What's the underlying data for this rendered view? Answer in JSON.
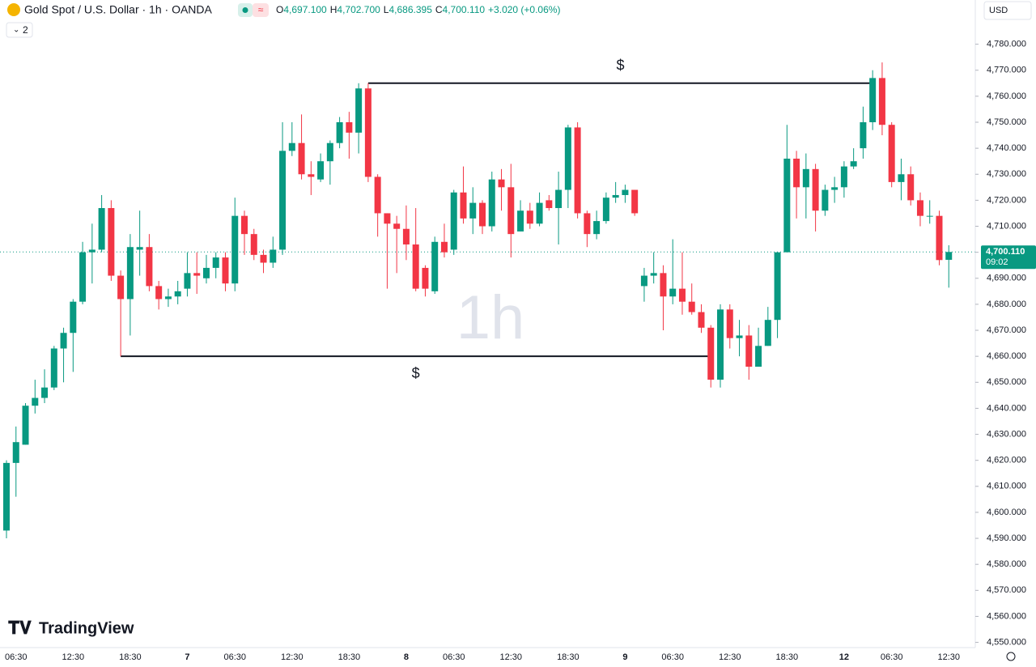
{
  "chart_data": {
    "type": "candlestick",
    "title": "Gold Spot / U.S. Dollar · 1h · OANDA",
    "legend": [
      {
        "prefix": "O",
        "value": "4,697.100"
      },
      {
        "prefix": "H",
        "value": "4,702.700"
      },
      {
        "prefix": "L",
        "value": "4,686.395"
      },
      {
        "prefix": "C",
        "value": "4,700.110"
      }
    ],
    "change": "+3.020 (+0.06%)",
    "indicators_count": "2",
    "currency": "USD",
    "watermark": "1h",
    "brand": "TradingView",
    "up_color": "#089981",
    "down_color": "#f23645",
    "grid": false,
    "current_price": {
      "value": 4700.11,
      "label": "4,700.110"
    },
    "countdown": "09:02",
    "annotations": [
      {
        "label": "$",
        "value": 4765,
        "x_range": [
          38,
          91
        ]
      },
      {
        "label": "$",
        "value": 4660,
        "x_range": [
          12,
          74
        ]
      }
    ],
    "categories": [
      null,
      "06:30",
      null,
      null,
      null,
      null,
      null,
      "12:30",
      null,
      null,
      null,
      null,
      null,
      "18:30",
      null,
      null,
      null,
      null,
      null,
      "7",
      null,
      null,
      null,
      null,
      "06:30",
      null,
      null,
      null,
      null,
      null,
      "12:30",
      null,
      null,
      null,
      null,
      null,
      "18:30",
      null,
      null,
      null,
      null,
      null,
      "8",
      null,
      null,
      null,
      null,
      "06:30",
      null,
      null,
      null,
      null,
      null,
      "12:30",
      null,
      null,
      null,
      null,
      null,
      "18:30",
      null,
      null,
      null,
      null,
      null,
      "9",
      null,
      null,
      null,
      null,
      "06:30",
      null,
      null,
      null,
      null,
      null,
      "12:30",
      null,
      null,
      null,
      null,
      null,
      "18:30",
      null,
      null,
      null,
      null,
      null,
      "12",
      null,
      null,
      null,
      null,
      "06:30",
      null,
      null,
      null,
      null,
      null,
      "12:30"
    ],
    "open": [
      4593,
      4619,
      4626,
      4641,
      4644,
      4648,
      4663,
      4669,
      4681,
      4700,
      4701,
      4717,
      4691,
      4682,
      4701,
      4702,
      4687,
      4682,
      4683,
      4686,
      4692,
      4690,
      4694,
      4698,
      4688,
      4714,
      4707,
      4699,
      4696,
      4701,
      4739,
      4742,
      4730,
      4728,
      4735,
      4742,
      4750,
      4746,
      4763,
      4729,
      4715,
      4711,
      4709,
      4703,
      4694,
      4685,
      4704,
      4701,
      4723,
      4713,
      4719,
      4710,
      4728,
      4725,
      4708,
      4716,
      4711,
      4720,
      4717,
      4724,
      4748,
      4715,
      4707,
      4712,
      4721,
      4722,
      4724,
      4687,
      4691,
      4692,
      4683,
      4686,
      4681,
      4677,
      4671,
      4651,
      4678,
      4667,
      4668,
      4656,
      4664,
      4674,
      4700,
      4736,
      4725,
      4732,
      4716,
      4724,
      4725,
      4733,
      4740,
      4750,
      4767,
      4749,
      4727,
      4730,
      4720,
      4714,
      4714,
      4697.1
    ],
    "high": [
      4620,
      4633,
      4642,
      4651,
      4655,
      4664,
      4671,
      4682,
      4704,
      4711,
      4722,
      4720,
      4693,
      4707,
      4716,
      4707,
      4689,
      4686,
      4689,
      4700,
      4700,
      4699,
      4700,
      4700,
      4721,
      4716,
      4709,
      4701,
      4706,
      4750,
      4750,
      4753,
      4735,
      4738,
      4743,
      4752,
      4754,
      4765,
      4765,
      4730,
      4715,
      4714,
      4718,
      4717,
      4695,
      4706,
      4711,
      4724,
      4733,
      4725,
      4720,
      4731,
      4732,
      4734,
      4720,
      4719,
      4723,
      4722,
      4731,
      4749,
      4750,
      4716,
      4716,
      4723,
      4727,
      4726,
      4724,
      4694,
      4700,
      4695,
      4705,
      4700,
      4688,
      4680,
      4672,
      4680,
      4680,
      4674,
      4672,
      4671,
      4679,
      4700,
      4749,
      4739,
      4738,
      4734,
      4726,
      4729,
      4735,
      4740,
      4756,
      4770,
      4773,
      4750,
      4736,
      4733,
      4723,
      4720,
      4716,
      4702.7
    ],
    "low": [
      4590,
      4606,
      4626,
      4638,
      4642,
      4647,
      4650,
      4654,
      4680,
      4688,
      4700,
      4689,
      4660,
      4668,
      4691,
      4685,
      4678,
      4679,
      4680,
      4683,
      4684,
      4688,
      4690,
      4685,
      4685,
      4699,
      4697,
      4692,
      4694,
      4699,
      4737,
      4728,
      4722,
      4727,
      4726,
      4740,
      4736,
      4738,
      4727,
      4706,
      4686,
      4692,
      4697,
      4685,
      4683,
      4684,
      4698,
      4699,
      4711,
      4707,
      4707,
      4708,
      4716,
      4698,
      4708,
      4709,
      4710,
      4716,
      4703,
      4717,
      4713,
      4702,
      4705,
      4711,
      4719,
      4719,
      4714,
      4681,
      4688,
      4670,
      4680,
      4676,
      4676,
      4669,
      4648,
      4648,
      4663,
      4660,
      4651,
      4656,
      4664,
      4667,
      4700,
      4713,
      4713,
      4708,
      4714,
      4719,
      4721,
      4732,
      4736,
      4747,
      4745,
      4725,
      4720,
      4718,
      4710,
      4711,
      4695,
      4686.395
    ],
    "close": [
      4619,
      4627,
      4641,
      4644,
      4648,
      4663,
      4669,
      4681,
      4700,
      4701,
      4717,
      4691,
      4682,
      4702,
      4702,
      4687,
      4682,
      4683,
      4685,
      4692,
      4691,
      4694,
      4698,
      4688,
      4714,
      4707,
      4699,
      4696,
      4701,
      4739,
      4742,
      4730,
      4729,
      4735,
      4742,
      4750,
      4746,
      4763,
      4729,
      4715,
      4711,
      4709,
      4703,
      4686,
      4686,
      4704,
      4700,
      4723,
      4713,
      4719,
      4710,
      4728,
      4725,
      4707,
      4716,
      4711,
      4719,
      4717,
      4724,
      4748,
      4715,
      4707,
      4712,
      4721,
      4722,
      4724,
      4715,
      4691,
      4692,
      4683,
      4686,
      4681,
      4677,
      4671,
      4651,
      4678,
      4667,
      4668,
      4656,
      4664,
      4674,
      4700,
      4736,
      4725,
      4732,
      4716,
      4724,
      4725,
      4733,
      4735,
      4750,
      4767,
      4749,
      4727,
      4730,
      4720,
      4714,
      4714,
      4697,
      4700.11
    ],
    "ylim": [
      4548,
      4797
    ],
    "yticks": [
      {
        "value": 4550,
        "label": "4,550.000"
      },
      {
        "value": 4560,
        "label": "4,560.000"
      },
      {
        "value": 4570,
        "label": "4,570.000"
      },
      {
        "value": 4580,
        "label": "4,580.000"
      },
      {
        "value": 4590,
        "label": "4,590.000"
      },
      {
        "value": 4600,
        "label": "4,600.000"
      },
      {
        "value": 4610,
        "label": "4,610.000"
      },
      {
        "value": 4620,
        "label": "4,620.000"
      },
      {
        "value": 4630,
        "label": "4,630.000"
      },
      {
        "value": 4640,
        "label": "4,640.000"
      },
      {
        "value": 4650,
        "label": "4,650.000"
      },
      {
        "value": 4660,
        "label": "4,660.000"
      },
      {
        "value": 4670,
        "label": "4,670.000"
      },
      {
        "value": 4680,
        "label": "4,680.000"
      },
      {
        "value": 4690,
        "label": "4,690.000"
      },
      {
        "value": 4700,
        "label": "4,700.000"
      },
      {
        "value": 4710,
        "label": "4,710.000"
      },
      {
        "value": 4720,
        "label": "4,720.000"
      },
      {
        "value": 4730,
        "label": "4,730.000"
      },
      {
        "value": 4740,
        "label": "4,740.000"
      },
      {
        "value": 4750,
        "label": "4,750.000"
      },
      {
        "value": 4760,
        "label": "4,760.000"
      },
      {
        "value": 4770,
        "label": "4,770.000"
      },
      {
        "value": 4780,
        "label": "4,780.000"
      }
    ]
  }
}
